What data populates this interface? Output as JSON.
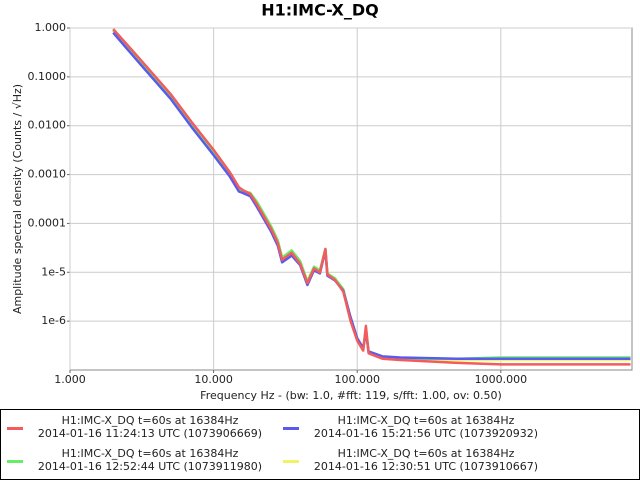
{
  "chart_data": {
    "type": "line",
    "title": "H1:IMC-X_DQ",
    "xlabel": "Frequency Hz - (bw: 1.0, #fft: 119, s/fft: 1.00, ov: 0.50)",
    "ylabel": "Amplitude spectral density (Counts / √Hz)",
    "xlog": true,
    "ylog": true,
    "grid": true,
    "xlim": [
      1,
      8192
    ],
    "ylim": [
      1e-07,
      1
    ],
    "xticks": [
      {
        "value": 1,
        "label": "1.000"
      },
      {
        "value": 10,
        "label": "10.000"
      },
      {
        "value": 100,
        "label": "100.000"
      },
      {
        "value": 1000,
        "label": "1000.000"
      }
    ],
    "yticks": [
      {
        "value": 1,
        "label": "1.000"
      },
      {
        "value": 0.1,
        "label": "0.1000"
      },
      {
        "value": 0.01,
        "label": "0.0100"
      },
      {
        "value": 0.001,
        "label": "0.0010"
      },
      {
        "value": 0.0001,
        "label": "0.0001"
      },
      {
        "value": 1e-05,
        "label": "1e-5"
      },
      {
        "value": 1e-06,
        "label": "1e-6"
      }
    ],
    "x": [
      2,
      3,
      5,
      7,
      10,
      13,
      15,
      16,
      18,
      20,
      25,
      28,
      30,
      35,
      40,
      45,
      50,
      55,
      60,
      62,
      70,
      80,
      90,
      100,
      110,
      115,
      120,
      150,
      200,
      500,
      1000,
      2000,
      8000
    ],
    "series": [
      {
        "name": "H1:IMC-X_DQ t=60s at 16384Hz\n2014-01-16 11:24:13 UTC (1073906669)",
        "color": "#f25c5c",
        "values": [
          0.95,
          0.25,
          0.045,
          0.012,
          0.0032,
          0.0011,
          0.00055,
          0.00048,
          0.0004,
          0.00025,
          8e-05,
          4e-05,
          1.8e-05,
          2.5e-05,
          1.5e-05,
          6e-06,
          1.2e-05,
          1e-05,
          3e-05,
          9e-06,
          7e-06,
          4e-06,
          1e-06,
          4e-07,
          2.5e-07,
          8e-07,
          2.2e-07,
          1.7e-07,
          1.6e-07,
          1.4e-07,
          1.3e-07,
          1.3e-07,
          1.3e-07
        ]
      },
      {
        "name": "H1:IMC-X_DQ t=60s at 16384Hz\n2014-01-16 15:21:56 UTC (1073920932)",
        "color": "#5a5aee",
        "values": [
          0.8,
          0.2,
          0.036,
          0.0095,
          0.0025,
          0.0009,
          0.00045,
          0.00042,
          0.00036,
          0.00022,
          7e-05,
          3.5e-05,
          1.6e-05,
          2.2e-05,
          1.4e-05,
          5.5e-06,
          1.1e-05,
          9.5e-06,
          2.8e-05,
          8.5e-06,
          6.8e-06,
          4.2e-06,
          1.2e-06,
          4.5e-07,
          2.8e-07,
          6e-07,
          2.4e-07,
          1.9e-07,
          1.8e-07,
          1.7e-07,
          1.7e-07,
          1.7e-07,
          1.7e-07
        ]
      },
      {
        "name": "H1:IMC-X_DQ t=60s at 16384Hz\n2014-01-16 12:52:44 UTC (1073911980)",
        "color": "#66ee66",
        "values": [
          0.9,
          0.22,
          0.04,
          0.011,
          0.0029,
          0.001,
          0.0005,
          0.00046,
          0.00042,
          0.00028,
          9e-05,
          4.5e-05,
          2e-05,
          2.8e-05,
          1.7e-05,
          6.5e-06,
          1.3e-05,
          1.1e-05,
          3e-05,
          9.5e-06,
          7.5e-06,
          4.5e-06,
          1.1e-06,
          4.2e-07,
          2.7e-07,
          7e-07,
          2.3e-07,
          1.8e-07,
          1.7e-07,
          1.7e-07,
          1.8e-07,
          1.8e-07,
          1.8e-07
        ]
      },
      {
        "name": "H1:IMC-X_DQ t=60s at 16384Hz\n2014-01-16 12:30:51 UTC (1073910667)",
        "color": "#f2f266",
        "values": [
          0.88,
          0.21,
          0.039,
          0.0105,
          0.0028,
          0.00095,
          0.00048,
          0.00044,
          0.0004,
          0.00026,
          8.5e-05,
          4.2e-05,
          1.9e-05,
          2.6e-05,
          1.6e-05,
          6e-06,
          1.2e-05,
          1e-05,
          2.9e-05,
          9e-06,
          7e-06,
          4.3e-06,
          1.1e-06,
          4.2e-07,
          2.7e-07,
          6.5e-07,
          2.3e-07,
          1.8e-07,
          1.7e-07,
          1.6e-07,
          1.6e-07,
          1.6e-07,
          1.6e-07
        ]
      }
    ]
  }
}
